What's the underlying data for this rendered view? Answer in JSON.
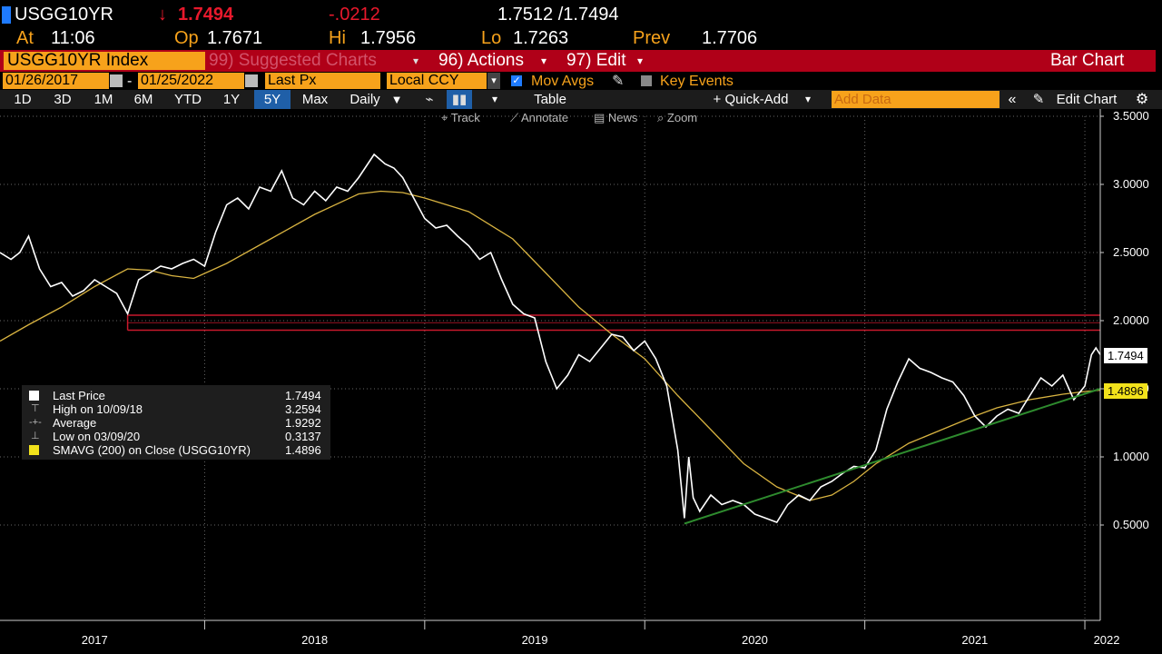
{
  "header": {
    "ticker": "USGG10YR",
    "last_arrow": "↓",
    "last": "1.7494",
    "change": "-.0212",
    "bid_ask": "1.7512 /1.7494",
    "at_label": "At",
    "time": "11:06",
    "open_label": "Op",
    "open": "1.7671",
    "high_label": "Hi",
    "high": "1.7956",
    "low_label": "Lo",
    "low": "1.7263",
    "prev_label": "Prev",
    "prev": "1.7706"
  },
  "menubar": {
    "index": "USGG10YR Index",
    "suggested": "99) Suggested Charts",
    "actions": "96) Actions",
    "edit": "97) Edit",
    "chart_type": "Bar Chart"
  },
  "options": {
    "start_date": "01/26/2017",
    "dash": "-",
    "end_date": "01/25/2022",
    "field": "Last Px",
    "currency": "Local CCY",
    "mov_avgs": "Mov Avgs",
    "key_events": "Key Events"
  },
  "toolbar": {
    "periods": [
      "1D",
      "3D",
      "1M",
      "6M",
      "YTD",
      "1Y",
      "5Y",
      "Max"
    ],
    "selected_period": "5Y",
    "frequency": "Daily",
    "table": "Table",
    "quick_add": "+ Quick-Add",
    "add_data_placeholder": "Add Data",
    "edit_chart": "Edit Chart"
  },
  "subtools": {
    "track": "Track",
    "annotate": "Annotate",
    "news": "News",
    "zoom": "Zoom"
  },
  "legend": {
    "items": [
      {
        "label": "Last Price",
        "value": "1.7494"
      },
      {
        "label": "High on 10/09/18",
        "value": "3.2594"
      },
      {
        "label": "Average",
        "value": "1.9292"
      },
      {
        "label": "Low on 03/09/20",
        "value": "0.3137"
      },
      {
        "label": "SMAVG (200)  on Close (USGG10YR)",
        "value": "1.4896"
      }
    ]
  },
  "price_labels": {
    "last": "1.7494",
    "smavg": "1.4896"
  },
  "colors": {
    "amber": "#f7a21b",
    "red": "#e8192c",
    "price_line": "#ffffff",
    "smavg_line": "#d8b341",
    "trend_line": "#2e8b2e",
    "band_line": "#c8192c"
  },
  "chart_data": {
    "type": "line",
    "y_ticks": [
      "3.5000",
      "3.0000",
      "2.5000",
      "2.0000",
      "1.5000",
      "1.0000",
      "0.5000"
    ],
    "ylim": [
      -0.2,
      3.5
    ],
    "x_tick_labels": [
      "2017",
      "2018",
      "2019",
      "2020",
      "2021",
      "2022"
    ],
    "x_range": [
      2017.07,
      2022.07
    ],
    "series": [
      {
        "name": "Last Price",
        "x": [
          2017.07,
          2017.12,
          2017.16,
          2017.2,
          2017.25,
          2017.3,
          2017.35,
          2017.4,
          2017.45,
          2017.5,
          2017.55,
          2017.6,
          2017.65,
          2017.7,
          2017.75,
          2017.8,
          2017.85,
          2017.9,
          2017.95,
          2018.0,
          2018.05,
          2018.1,
          2018.15,
          2018.2,
          2018.25,
          2018.3,
          2018.35,
          2018.4,
          2018.45,
          2018.5,
          2018.55,
          2018.6,
          2018.65,
          2018.7,
          2018.77,
          2018.82,
          2018.86,
          2018.9,
          2018.95,
          2019.0,
          2019.05,
          2019.1,
          2019.15,
          2019.2,
          2019.25,
          2019.3,
          2019.35,
          2019.4,
          2019.45,
          2019.5,
          2019.55,
          2019.6,
          2019.65,
          2019.7,
          2019.75,
          2019.8,
          2019.85,
          2019.9,
          2019.95,
          2020.0,
          2020.05,
          2020.1,
          2020.15,
          2020.18,
          2020.2,
          2020.22,
          2020.25,
          2020.3,
          2020.35,
          2020.4,
          2020.45,
          2020.5,
          2020.55,
          2020.6,
          2020.65,
          2020.7,
          2020.75,
          2020.8,
          2020.85,
          2020.9,
          2020.95,
          2021.0,
          2021.05,
          2021.1,
          2021.15,
          2021.2,
          2021.25,
          2021.3,
          2021.35,
          2021.4,
          2021.45,
          2021.5,
          2021.55,
          2021.6,
          2021.65,
          2021.7,
          2021.75,
          2021.8,
          2021.85,
          2021.9,
          2021.95,
          2022.0,
          2022.03,
          2022.05,
          2022.07
        ],
        "values": [
          2.5,
          2.45,
          2.5,
          2.62,
          2.38,
          2.25,
          2.28,
          2.18,
          2.22,
          2.3,
          2.25,
          2.2,
          2.05,
          2.3,
          2.35,
          2.4,
          2.38,
          2.42,
          2.45,
          2.4,
          2.65,
          2.85,
          2.9,
          2.82,
          2.98,
          2.95,
          3.1,
          2.9,
          2.85,
          2.95,
          2.88,
          2.98,
          2.95,
          3.05,
          3.22,
          3.15,
          3.12,
          3.05,
          2.9,
          2.75,
          2.68,
          2.7,
          2.62,
          2.55,
          2.45,
          2.5,
          2.3,
          2.12,
          2.05,
          2.02,
          1.7,
          1.5,
          1.6,
          1.75,
          1.7,
          1.8,
          1.9,
          1.88,
          1.78,
          1.85,
          1.72,
          1.52,
          1.05,
          0.55,
          1.0,
          0.7,
          0.6,
          0.72,
          0.65,
          0.68,
          0.65,
          0.58,
          0.55,
          0.52,
          0.65,
          0.72,
          0.68,
          0.78,
          0.82,
          0.88,
          0.93,
          0.92,
          1.05,
          1.35,
          1.55,
          1.72,
          1.65,
          1.62,
          1.58,
          1.55,
          1.45,
          1.3,
          1.22,
          1.3,
          1.35,
          1.32,
          1.45,
          1.58,
          1.52,
          1.6,
          1.42,
          1.52,
          1.75,
          1.8,
          1.75
        ]
      },
      {
        "name": "SMAVG (200)",
        "x": [
          2017.07,
          2017.2,
          2017.35,
          2017.5,
          2017.65,
          2017.75,
          2017.85,
          2017.95,
          2018.1,
          2018.3,
          2018.5,
          2018.7,
          2018.8,
          2018.9,
          2019.0,
          2019.2,
          2019.4,
          2019.55,
          2019.7,
          2019.85,
          2020.0,
          2020.15,
          2020.3,
          2020.45,
          2020.6,
          2020.75,
          2020.85,
          2020.95,
          2021.05,
          2021.2,
          2021.35,
          2021.5,
          2021.6,
          2021.75,
          2021.9,
          2022.0,
          2022.07
        ],
        "values": [
          1.85,
          1.97,
          2.1,
          2.25,
          2.38,
          2.37,
          2.33,
          2.31,
          2.42,
          2.6,
          2.78,
          2.93,
          2.95,
          2.94,
          2.9,
          2.8,
          2.6,
          2.35,
          2.1,
          1.9,
          1.72,
          1.45,
          1.2,
          0.95,
          0.78,
          0.68,
          0.72,
          0.82,
          0.95,
          1.1,
          1.2,
          1.3,
          1.36,
          1.42,
          1.46,
          1.48,
          1.4896
        ]
      }
    ],
    "annotations": [
      {
        "type": "band",
        "from": 1.93,
        "to": 2.04,
        "x_start": 2017.65
      },
      {
        "type": "trendline",
        "from_x": 2020.18,
        "from_y": 0.51,
        "to_x": 2022.07,
        "to_y": 1.5
      }
    ]
  }
}
